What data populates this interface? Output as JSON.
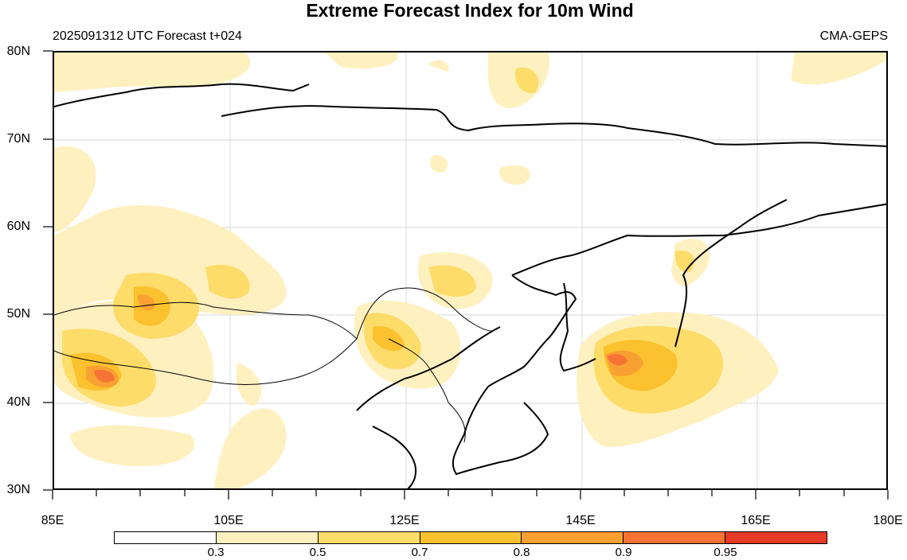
{
  "title": "Extreme Forecast Index for 10m Wind",
  "subtitle_left": "2025091312 UTC Forecast t+024",
  "subtitle_right": "CMA-GEPS",
  "lat_labels": [
    "80N",
    "70N",
    "60N",
    "50N",
    "40N",
    "30N"
  ],
  "lon_labels": [
    "85E",
    "105E",
    "125E",
    "145E",
    "165E",
    "180E"
  ],
  "colorbar": {
    "labels": [
      "0.3",
      "0.5",
      "0.7",
      "0.8",
      "0.9",
      "0.95"
    ],
    "colors": [
      "#ffffff",
      "#fff0bf",
      "#fddc6a",
      "#fbc12e",
      "#f9a032",
      "#f57434",
      "#e73a27"
    ]
  },
  "chart_data": {
    "type": "heatmap",
    "title": "Extreme Forecast Index for 10m Wind",
    "lon_range": [
      85,
      180
    ],
    "lat_range": [
      30,
      80
    ],
    "levels": [
      0.3,
      0.5,
      0.7,
      0.8,
      0.9,
      0.95
    ],
    "max_region": {
      "lon": 147,
      "lat": 45,
      "value": 0.95
    }
  }
}
